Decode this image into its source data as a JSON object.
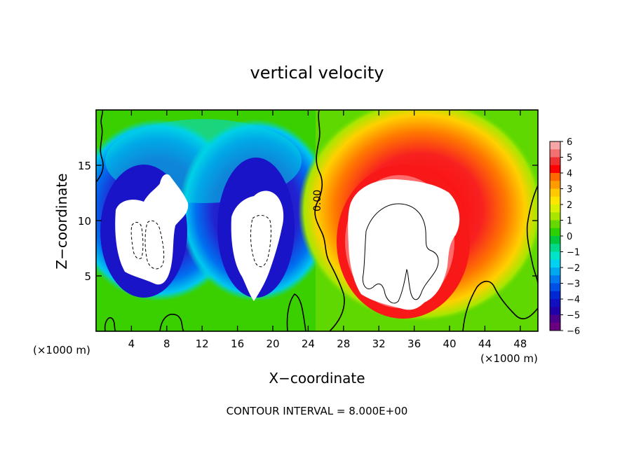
{
  "chart_data": {
    "type": "heatmap",
    "title": "vertical velocity",
    "xlabel": "X−coordinate",
    "ylabel": "Z−coordinate",
    "x_unit_left": "(×1000 m)",
    "x_unit_right": "(×1000 m)",
    "xlim": [
      0,
      50
    ],
    "ylim": [
      0,
      20
    ],
    "x_ticks": [
      4,
      8,
      12,
      16,
      20,
      24,
      28,
      32,
      36,
      40,
      44,
      48
    ],
    "y_ticks": [
      5,
      10,
      15
    ],
    "contour_label": "0.00",
    "footer": "CONTOUR INTERVAL = 8.000E+00",
    "colorbar": {
      "range": [
        -6,
        6
      ],
      "labels": [
        "6",
        "5",
        "4",
        "3",
        "2",
        "1",
        "0",
        "−1",
        "−2",
        "−3",
        "−4",
        "−5",
        "−6"
      ],
      "colors": [
        "#f6a6a6",
        "#f47070",
        "#f03030",
        "#ff0000",
        "#ff6a00",
        "#ff9b00",
        "#ffc800",
        "#ffe600",
        "#d9f000",
        "#a8e600",
        "#64d800",
        "#2bd100",
        "#00c83c",
        "#00d88a",
        "#00e4c8",
        "#00d2f0",
        "#00a8f0",
        "#0078f0",
        "#0050e6",
        "#0028d2",
        "#1010c0",
        "#2000a8",
        "#4b008c",
        "#6a0080"
      ]
    },
    "features": [
      {
        "name": "downdraft-left",
        "x": 8,
        "z": 9.5,
        "w_min": -6
      },
      {
        "name": "downdraft-center",
        "x": 18,
        "z": 8.5,
        "w_min": -6
      },
      {
        "name": "updraft-right",
        "x": 35,
        "z": 8.5,
        "w_max": 6
      }
    ]
  }
}
